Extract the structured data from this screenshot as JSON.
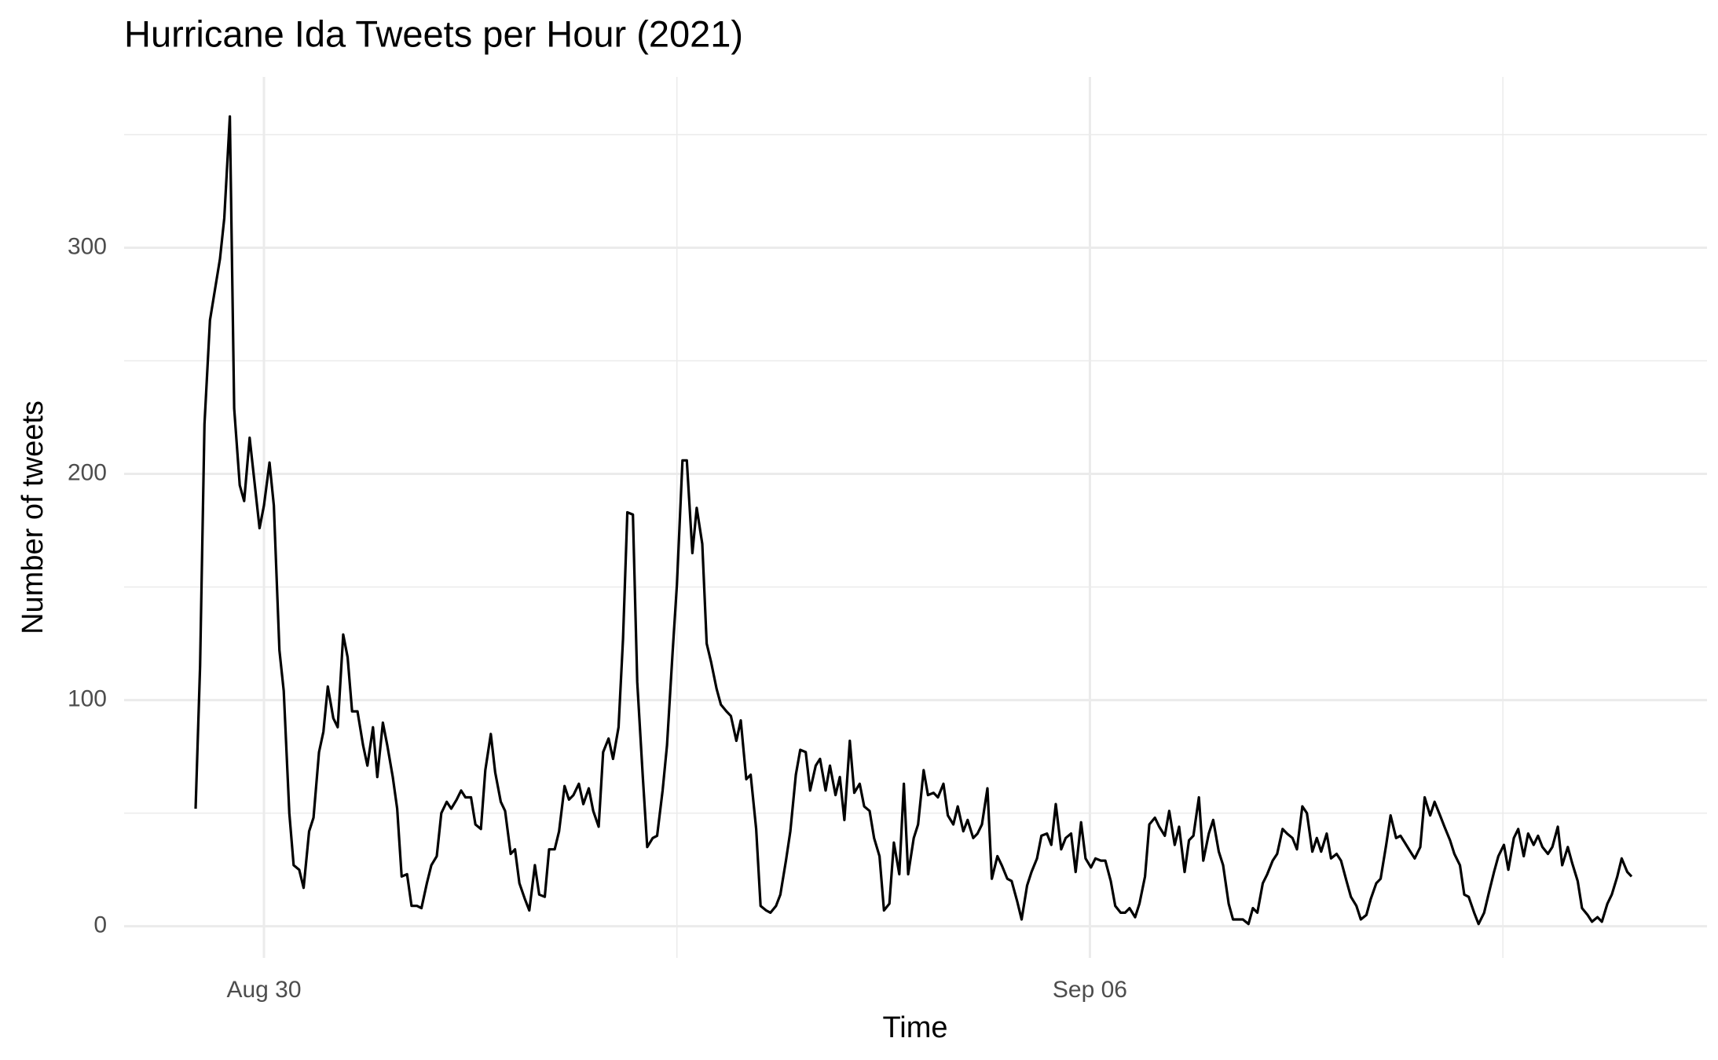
{
  "chart_data": {
    "type": "line",
    "title": "Hurricane Ida Tweets per Hour (2021)",
    "x_label": "Time",
    "y_label": "Number of tweets",
    "color": "#000000",
    "grid": true,
    "xlim": [
      -1.185,
      12.23
    ],
    "ylim": [
      -14,
      375.5
    ],
    "xticks": [
      {
        "value": 0,
        "label": "Aug 30"
      },
      {
        "value": 7,
        "label": "Sep 06"
      }
    ],
    "yticks": [
      0,
      100,
      200,
      300
    ],
    "xminor": [
      3.5,
      10.5
    ],
    "yminor": [
      50,
      150,
      250,
      350
    ],
    "x": [
      -0.579,
      -0.541,
      -0.504,
      -0.457,
      -0.373,
      -0.336,
      -0.289,
      -0.252,
      -0.205,
      -0.168,
      -0.121,
      -0.037,
      0,
      0.047,
      0.084,
      0.131,
      0.168,
      0.215,
      0.252,
      0.299,
      0.336,
      0.383,
      0.42,
      0.467,
      0.504,
      0.541,
      0.588,
      0.625,
      0.672,
      0.709,
      0.747,
      0.793,
      0.84,
      0.877,
      0.924,
      0.961,
      1.008,
      1.045,
      1.092,
      1.129,
      1.167,
      1.213,
      1.251,
      1.297,
      1.335,
      1.381,
      1.419,
      1.465,
      1.503,
      1.549,
      1.587,
      1.633,
      1.671,
      1.708,
      1.755,
      1.792,
      1.839,
      1.876,
      1.923,
      1.96,
      2.007,
      2.044,
      2.091,
      2.128,
      2.165,
      2.212,
      2.249,
      2.296,
      2.333,
      2.38,
      2.417,
      2.464,
      2.501,
      2.548,
      2.585,
      2.623,
      2.669,
      2.707,
      2.753,
      2.791,
      2.837,
      2.875,
      2.921,
      2.959,
      3.005,
      3.043,
      3.08,
      3.127,
      3.164,
      3.211,
      3.248,
      3.295,
      3.332,
      3.379,
      3.416,
      3.463,
      3.5,
      3.547,
      3.584,
      3.631,
      3.668,
      3.715,
      3.752,
      3.789,
      3.836,
      3.873,
      3.92,
      3.957,
      4.004,
      4.041,
      4.088,
      4.125,
      4.172,
      4.209,
      4.256,
      4.293,
      4.34,
      4.377,
      4.424,
      4.461,
      4.508,
      4.545,
      4.592,
      4.629,
      4.676,
      4.713,
      4.76,
      4.797,
      4.844,
      4.881,
      4.919,
      4.965,
      5.003,
      5.049,
      5.087,
      5.133,
      5.171,
      5.217,
      5.255,
      5.301,
      5.339,
      5.385,
      5.423,
      5.46,
      5.507,
      5.544,
      5.591,
      5.628,
      5.675,
      5.712,
      5.759,
      5.796,
      5.843,
      5.88,
      5.927,
      5.964,
      6.011,
      6.048,
      6.085,
      6.132,
      6.169,
      6.216,
      6.253,
      6.3,
      6.337,
      6.384,
      6.421,
      6.468,
      6.505,
      6.552,
      6.589,
      6.636,
      6.673,
      6.711,
      6.757,
      6.795,
      6.841,
      6.879,
      6.925,
      6.963,
      7.009,
      7.047,
      7.093,
      7.131,
      7.177,
      7.215,
      7.261,
      7.299,
      7.336,
      7.383,
      7.42,
      7.467,
      7.504,
      7.551,
      7.588,
      7.635,
      7.672,
      7.719,
      7.756,
      7.803,
      7.84,
      7.877,
      7.924,
      7.961,
      8.008,
      8.045,
      8.092,
      8.129,
      8.176,
      8.213,
      8.26,
      8.297,
      8.344,
      8.381,
      8.419,
      8.465,
      8.503,
      8.549,
      8.587,
      8.633,
      8.671,
      8.717,
      8.755,
      8.801,
      8.839,
      8.885,
      8.923,
      8.96,
      9.007,
      9.044,
      9.091,
      9.128,
      9.175,
      9.212,
      9.259,
      9.296,
      9.343,
      9.38,
      9.427,
      9.464,
      9.511,
      9.548,
      9.595,
      9.632,
      9.669,
      9.716,
      9.753,
      9.8,
      9.837,
      9.884,
      9.921,
      9.968,
      10.005,
      10.052,
      10.089,
      10.136,
      10.173,
      10.21,
      10.257,
      10.294,
      10.341,
      10.378,
      10.425,
      10.462,
      10.509,
      10.546,
      10.593,
      10.63,
      10.677,
      10.714,
      10.761,
      10.798,
      10.835,
      10.882,
      10.919,
      10.966,
      11.003,
      11.05,
      11.087,
      11.134,
      11.171,
      11.218,
      11.255,
      11.302,
      11.339,
      11.386,
      11.423,
      11.47,
      11.507,
      11.554,
      11.591
    ],
    "values": [
      52,
      115,
      222,
      268,
      295,
      313,
      358,
      229,
      195,
      188,
      216,
      176,
      186,
      205,
      186,
      122,
      104,
      50,
      27,
      25,
      17,
      42,
      48,
      77,
      86,
      106,
      92,
      88,
      129,
      119,
      95,
      95,
      80,
      71,
      88,
      66,
      90,
      80,
      66,
      52,
      22,
      23,
      9,
      9,
      8,
      19,
      27,
      31,
      50,
      55,
      52,
      56,
      60,
      57,
      57,
      45,
      43,
      69,
      85,
      68,
      55,
      51,
      32,
      34,
      19,
      12,
      7,
      27,
      14,
      13,
      34,
      34,
      42,
      62,
      56,
      58,
      63,
      54,
      61,
      51,
      44,
      77,
      83,
      74,
      88,
      127,
      183,
      182,
      108,
      66,
      35,
      39,
      40,
      60,
      80,
      121,
      151,
      206,
      206,
      165,
      185,
      169,
      125,
      117,
      105,
      98,
      95,
      93,
      82,
      91,
      65,
      67,
      43,
      9,
      7,
      6,
      9,
      14,
      29,
      42,
      67,
      78,
      77,
      60,
      71,
      74,
      60,
      71,
      58,
      66,
      47,
      82,
      59,
      63,
      53,
      51,
      39,
      31,
      7,
      10,
      37,
      23,
      63,
      23,
      39,
      45,
      69,
      58,
      59,
      57,
      63,
      49,
      45,
      53,
      42,
      47,
      39,
      41,
      45,
      61,
      21,
      31,
      27,
      21,
      20,
      11,
      3,
      18,
      24,
      30,
      40,
      41,
      36,
      54,
      34,
      39,
      41,
      24,
      46,
      30,
      26,
      30,
      29,
      29,
      20,
      9,
      6,
      6,
      8,
      4,
      10,
      22,
      45,
      48,
      44,
      40,
      51,
      36,
      44,
      24,
      38,
      40,
      57,
      29,
      41,
      47,
      33,
      27,
      10,
      3,
      3,
      3,
      1,
      8,
      6,
      19,
      23,
      29,
      32,
      43,
      41,
      39,
      34,
      53,
      50,
      33,
      39,
      33,
      41,
      30,
      32,
      29,
      20,
      13,
      9,
      3,
      5,
      12,
      19,
      21,
      36,
      49,
      39,
      40,
      37,
      33,
      30,
      35,
      57,
      49,
      55,
      49,
      44,
      38,
      32,
      27,
      14,
      13,
      6,
      1,
      6,
      14,
      24,
      31,
      36,
      25,
      39,
      43,
      31,
      41,
      36,
      40,
      35,
      32,
      35,
      44,
      27,
      35,
      28,
      20,
      8,
      5,
      2,
      4,
      2,
      10,
      14,
      22,
      30,
      24,
      22
    ]
  }
}
